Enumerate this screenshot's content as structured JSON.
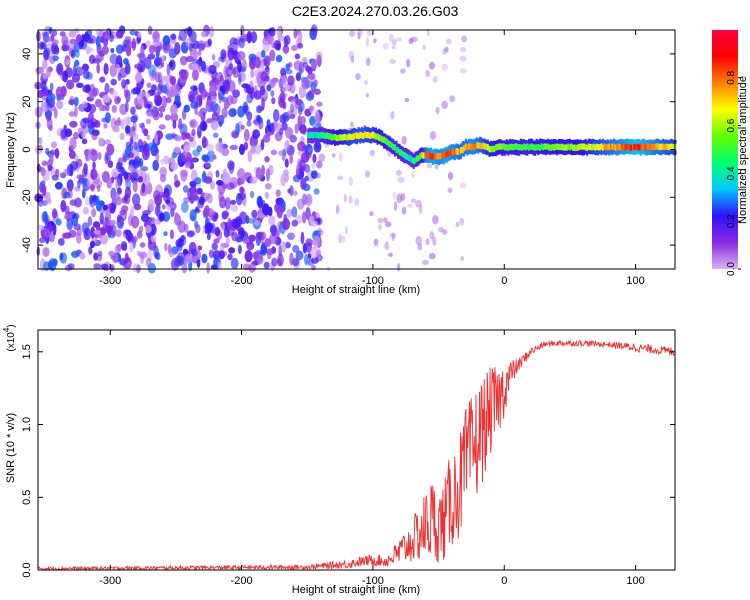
{
  "title": "C2E3.2024.270.03.26.G03",
  "chart_data": [
    {
      "type": "heatmap",
      "xlabel": "Height of straight line (km)",
      "ylabel": "Frequency (Hz)",
      "xlim": [
        -355,
        130
      ],
      "ylim": [
        -50,
        50
      ],
      "x_ticks": [
        -300,
        -200,
        -100,
        0,
        100
      ],
      "y_ticks": [
        -40,
        -20,
        0,
        20,
        40
      ],
      "colorbar": {
        "label": "Normalized spectral amplitude",
        "range": [
          0,
          1
        ],
        "ticks": [
          "0.0",
          "0.2",
          "0.4",
          "0.6",
          "0.8"
        ],
        "colors": [
          "#d8b4f8",
          "#8a2be2",
          "#3010ff",
          "#00c8ff",
          "#00ff70",
          "#60ff00",
          "#ffff00",
          "#ff8000",
          "#ff0000",
          "#ff0040"
        ]
      },
      "ridge": {
        "x": [
          -150,
          -140,
          -130,
          -120,
          -110,
          -100,
          -95,
          -90,
          -85,
          -80,
          -75,
          -70,
          -65,
          -60,
          -55,
          -50,
          -45,
          -40,
          -35,
          -30,
          -25,
          -20,
          -15,
          -10,
          -5,
          0,
          20,
          40,
          60,
          80,
          100,
          130
        ],
        "frequency": [
          6,
          6,
          5,
          5,
          6,
          6,
          5,
          3,
          1,
          -1,
          -3,
          -5,
          -3,
          -2,
          -3,
          -3,
          -2,
          -1,
          -1,
          1,
          1,
          2,
          1,
          0,
          1,
          1,
          1,
          1,
          1,
          1,
          1,
          1
        ],
        "amplitude": [
          0.4,
          0.45,
          0.6,
          0.7,
          0.75,
          0.7,
          0.6,
          0.55,
          0.5,
          0.5,
          0.45,
          0.45,
          0.55,
          0.85,
          0.9,
          0.85,
          0.9,
          0.85,
          0.8,
          0.8,
          0.85,
          0.8,
          0.7,
          0.65,
          0.6,
          0.55,
          0.55,
          0.6,
          0.65,
          0.8,
          0.95,
          0.7
        ]
      },
      "noise_region_x": [
        -355,
        -150
      ]
    },
    {
      "type": "line",
      "xlabel": "Height of straight line (km)",
      "ylabel": "SNR (10 * v/v)",
      "scale_label": "(x10",
      "scale_exponent": "4",
      "xlim": [
        -355,
        130
      ],
      "ylim": [
        0,
        1.65
      ],
      "x_ticks": [
        -300,
        -200,
        -100,
        0,
        100
      ],
      "y_ticks": [
        "0.0",
        "0.5",
        "1.0",
        "1.5"
      ],
      "color": "#f03030",
      "envelope": {
        "x": [
          -355,
          -150,
          -120,
          -100,
          -90,
          -80,
          -70,
          -60,
          -55,
          -50,
          -45,
          -40,
          -35,
          -30,
          -25,
          -20,
          -15,
          -10,
          -5,
          0,
          5,
          10,
          20,
          30,
          40,
          60,
          80,
          100,
          110,
          130
        ],
        "mean": [
          0.01,
          0.02,
          0.04,
          0.07,
          0.06,
          0.12,
          0.2,
          0.3,
          0.35,
          0.3,
          0.35,
          0.5,
          0.55,
          0.7,
          0.8,
          0.9,
          1.0,
          1.1,
          1.15,
          1.25,
          1.35,
          1.4,
          1.5,
          1.55,
          1.56,
          1.56,
          1.55,
          1.53,
          1.52,
          1.5
        ],
        "spread": [
          0.01,
          0.015,
          0.03,
          0.04,
          0.04,
          0.1,
          0.15,
          0.25,
          0.3,
          0.25,
          0.3,
          0.35,
          0.35,
          0.4,
          0.4,
          0.4,
          0.35,
          0.3,
          0.25,
          0.2,
          0.1,
          0.05,
          0.03,
          0.02,
          0.02,
          0.02,
          0.02,
          0.03,
          0.03,
          0.03
        ]
      }
    }
  ]
}
